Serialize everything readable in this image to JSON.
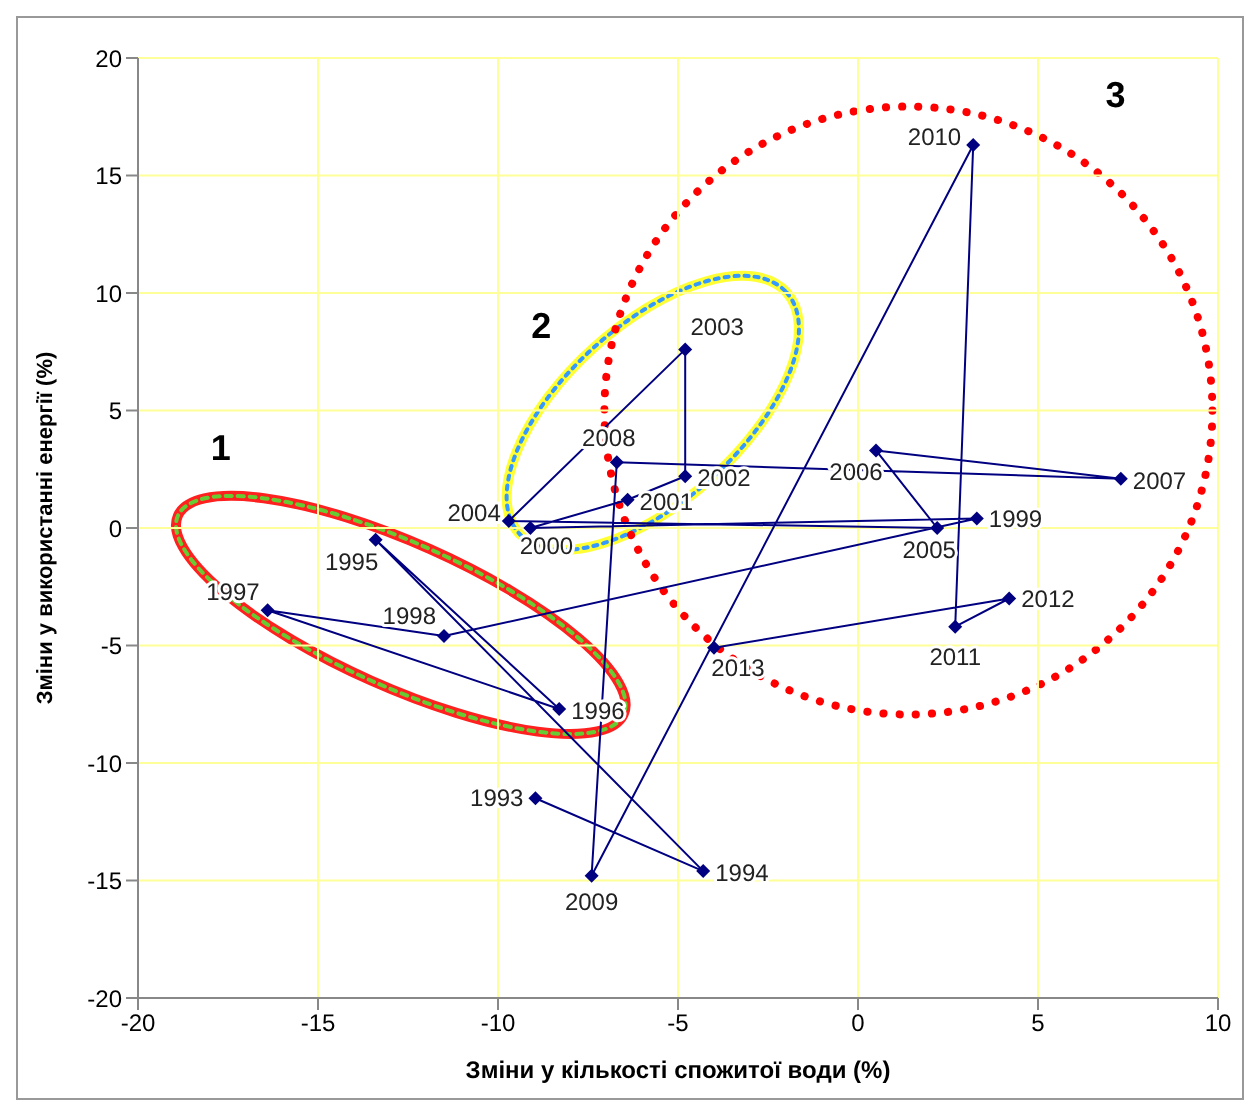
{
  "chart_data": {
    "type": "line",
    "xlabel": "Зміни у кількості спожитої води (%)",
    "ylabel": "Зміни у використанні енергії (%)",
    "x": [
      -8.96,
      -4.3,
      -13.4,
      -8.3,
      -16.4,
      -11.5,
      3.3,
      -9.1,
      -6.4,
      -4.8,
      -4.8,
      -9.7,
      2.2,
      0.5,
      7.3,
      -6.7,
      -7.4,
      3.2,
      2.7,
      4.2,
      -4.0
    ],
    "values": [
      -11.5,
      -14.6,
      -0.5,
      -7.7,
      -3.5,
      -4.6,
      0.4,
      0.0,
      1.2,
      2.2,
      7.6,
      0.3,
      0.0,
      3.3,
      2.1,
      2.8,
      -14.8,
      16.3,
      -4.2,
      -3.0,
      -5.1
    ],
    "color": "#000080",
    "marker": "diamond",
    "grid": true,
    "xlim": [
      -20,
      10
    ],
    "xticks": [
      -20,
      -15,
      -10,
      -5,
      0,
      5,
      10
    ],
    "ylim": [
      -20,
      20
    ],
    "yticks": [
      -20,
      -15,
      -10,
      -5,
      0,
      5,
      10,
      15,
      20
    ],
    "annotations": [
      {
        "text": "1993",
        "x": -8.96,
        "y": -11.5
      },
      {
        "text": "1994",
        "x": -4.3,
        "y": -14.6
      },
      {
        "text": "1995",
        "x": -13.4,
        "y": -0.5
      },
      {
        "text": "1996",
        "x": -8.3,
        "y": -7.7
      },
      {
        "text": "1997",
        "x": -16.4,
        "y": -3.5
      },
      {
        "text": "1998",
        "x": -11.5,
        "y": -4.6
      },
      {
        "text": "1999",
        "x": 3.3,
        "y": 0.4
      },
      {
        "text": "2000",
        "x": -9.1,
        "y": 0.0
      },
      {
        "text": "2001",
        "x": -6.4,
        "y": 1.2
      },
      {
        "text": "2002",
        "x": -4.8,
        "y": 2.2
      },
      {
        "text": "2003",
        "x": -4.8,
        "y": 7.6
      },
      {
        "text": "2004",
        "x": -9.7,
        "y": 0.3
      },
      {
        "text": "2005",
        "x": 2.2,
        "y": 0.0
      },
      {
        "text": "2006",
        "x": 0.5,
        "y": 3.3
      },
      {
        "text": "2007",
        "x": 7.3,
        "y": 2.1
      },
      {
        "text": "2008",
        "x": -6.7,
        "y": 2.8
      },
      {
        "text": "2009",
        "x": -7.4,
        "y": -14.8
      },
      {
        "text": "2010",
        "x": 3.2,
        "y": 16.3
      },
      {
        "text": "2011",
        "x": 2.7,
        "y": -4.2
      },
      {
        "text": "2012",
        "x": 4.2,
        "y": -3.0
      },
      {
        "text": "2013",
        "x": -4.0,
        "y": -5.1
      },
      "1",
      "2",
      "3"
    ]
  }
}
